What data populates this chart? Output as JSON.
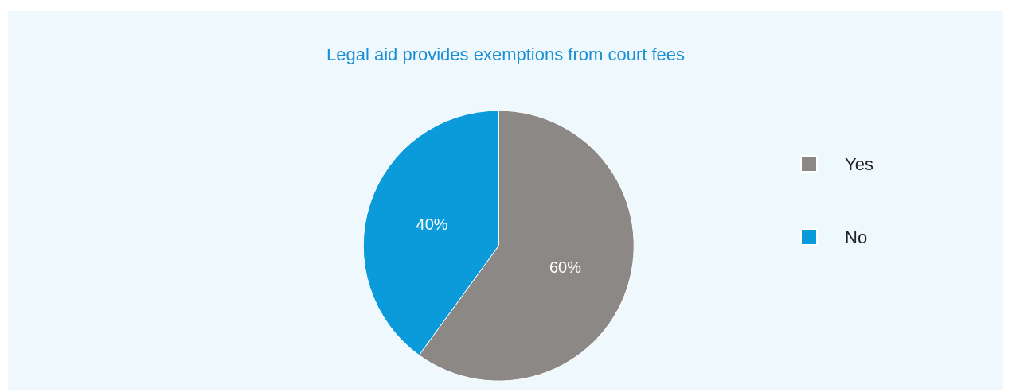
{
  "chart_data": {
    "type": "pie",
    "title": "Legal aid provides exemptions from court fees",
    "categories": [
      "Yes",
      "No"
    ],
    "values": [
      60,
      40
    ],
    "colors": [
      "#8c8886",
      "#0b9bdb"
    ],
    "value_labels": [
      "60%",
      "40%"
    ],
    "legend": "right"
  }
}
